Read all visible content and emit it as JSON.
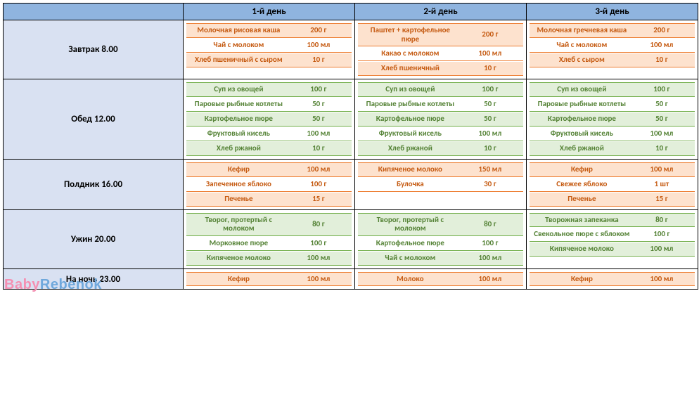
{
  "colors": {
    "header_bg": "#8fb4df",
    "meal_bg": "#d9e1f2",
    "orange_bg": "#fde2ce",
    "orange_text": "#c55a11",
    "orange_border": "#ed7d31",
    "green_bg": "#e2efda",
    "green_text": "#548235",
    "green_border": "#70ad47",
    "border": "#000000"
  },
  "header": {
    "cols": [
      "1-й день",
      "2-й день",
      "3-й день"
    ]
  },
  "meals": [
    {
      "label": "Завтрак 8.00",
      "scheme": "orange",
      "days": [
        [
          {
            "name": "Молочная рисовая каша",
            "qty": "200 г"
          },
          {
            "name": "Чай с молоком",
            "qty": "100 мл"
          },
          {
            "name": "Хлеб пшеничный с сыром",
            "qty": "10 г"
          }
        ],
        [
          {
            "name": "Паштет + картофельное пюре",
            "qty": "200 г"
          },
          {
            "name": "Какао с молоком",
            "qty": "100 мл"
          },
          {
            "name": "Хлеб пшеничный",
            "qty": "10 г"
          }
        ],
        [
          {
            "name": "Молочная гречневая каша",
            "qty": "200 г"
          },
          {
            "name": "Чай с молоком",
            "qty": "100 мл"
          },
          {
            "name": "Хлеб с сыром",
            "qty": "10 г"
          }
        ]
      ]
    },
    {
      "label": "Обед 12.00",
      "scheme": "green",
      "days": [
        [
          {
            "name": "Суп из овощей",
            "qty": "100 г"
          },
          {
            "name": "Паровые рыбные котлеты",
            "qty": "50 г"
          },
          {
            "name": "Картофельное пюре",
            "qty": "50 г"
          },
          {
            "name": "Фруктовый кисель",
            "qty": "100 мл"
          },
          {
            "name": "Хлеб ржаной",
            "qty": "10 г"
          }
        ],
        [
          {
            "name": "Суп из овощей",
            "qty": "100 г"
          },
          {
            "name": "Паровые рыбные котлеты",
            "qty": "50 г"
          },
          {
            "name": "Картофельное пюре",
            "qty": "50 г"
          },
          {
            "name": "Фруктовый кисель",
            "qty": "100 мл"
          },
          {
            "name": "Хлеб ржаной",
            "qty": "10 г"
          }
        ],
        [
          {
            "name": "Суп из овощей",
            "qty": "100 г"
          },
          {
            "name": "Паровые рыбные котлеты",
            "qty": "50 г"
          },
          {
            "name": "Картофельное пюре",
            "qty": "50 г"
          },
          {
            "name": "Фруктовый кисель",
            "qty": "100 мл"
          },
          {
            "name": "Хлеб ржаной",
            "qty": "10 г"
          }
        ]
      ]
    },
    {
      "label": "Полдник 16.00",
      "scheme": "orange",
      "days": [
        [
          {
            "name": "Кефир",
            "qty": "100 мл"
          },
          {
            "name": "Запеченное яблоко",
            "qty": "100 г"
          },
          {
            "name": "Печенье",
            "qty": "15 г"
          }
        ],
        [
          {
            "name": "Кипяченое молоко",
            "qty": "150 мл"
          },
          {
            "name": "Булочка",
            "qty": "30 г"
          }
        ],
        [
          {
            "name": "Кефир",
            "qty": "100 мл"
          },
          {
            "name": "Свежее яблоко",
            "qty": "1 шт"
          },
          {
            "name": "Печенье",
            "qty": "15 г"
          }
        ]
      ]
    },
    {
      "label": "Ужин 20.00",
      "scheme": "green",
      "days": [
        [
          {
            "name": "Творог, протертый с молоком",
            "qty": "80 г"
          },
          {
            "name": "Морковное пюре",
            "qty": "100 г"
          },
          {
            "name": "Кипяченое молоко",
            "qty": "100 мл"
          }
        ],
        [
          {
            "name": "Творог, протертый с молоком",
            "qty": "80 г"
          },
          {
            "name": "Картофельное пюре",
            "qty": "100 г"
          },
          {
            "name": "Чай с молоком",
            "qty": "100 мл"
          }
        ],
        [
          {
            "name": "Творожная запеканка",
            "qty": "80 г"
          },
          {
            "name": "Свекольное пюре с яблоком",
            "qty": "100 г"
          },
          {
            "name": "Кипяченое молоко",
            "qty": "100 мл"
          }
        ]
      ]
    },
    {
      "label": "На ночь 23.00",
      "scheme": "orange",
      "days": [
        [
          {
            "name": "Кефир",
            "qty": "100 мл"
          }
        ],
        [
          {
            "name": "Молоко",
            "qty": "100 мл"
          }
        ],
        [
          {
            "name": "Кефир",
            "qty": "100 мл"
          }
        ]
      ]
    }
  ],
  "watermark": {
    "a": "Baby",
    "b": "Rebenok"
  }
}
